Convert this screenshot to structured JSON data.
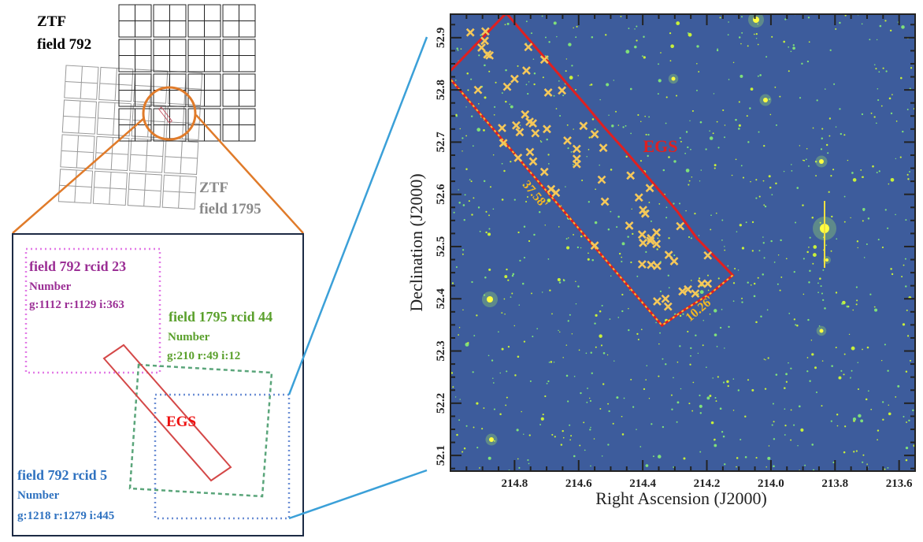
{
  "overview": {
    "field_792_label": [
      "ZTF",
      "field 792"
    ],
    "field_1795_label": [
      "ZTF",
      "field 1795"
    ]
  },
  "inset": {
    "boxes": [
      {
        "title": "field 792 rcid 23",
        "sub": "Number",
        "counts": "g:1112 r:1129 i:363",
        "color": "#9b2f95"
      },
      {
        "title": "field 1795 rcid 44",
        "sub": "Number",
        "counts": "g:210 r:49 i:12",
        "color": "#5aa02c"
      },
      {
        "title": "field 792 rcid 5",
        "sub": "Number",
        "counts": "g:1218 r:1279 i:445",
        "color": "#2f72c0"
      }
    ],
    "egs_label": "EGS"
  },
  "colors": {
    "egs": "#e02020",
    "cross": "#f5c85a",
    "sky": "#3d5c9c",
    "zoom_lines_orange": "#e07b2a",
    "zoom_lines_blue": "#3ba0d8"
  },
  "chart_data": {
    "type": "scatter",
    "xlabel": "Right Ascension (J2000)",
    "ylabel": "Declination (J2000)",
    "xlim": [
      215.0,
      213.55
    ],
    "ylim": [
      52.07,
      52.945
    ],
    "xticks": [
      "214.8",
      "214.6",
      "214.4",
      "214.2",
      "214.0",
      "213.8",
      "213.6"
    ],
    "yticks": [
      "52.1",
      "52.2",
      "52.3",
      "52.4",
      "52.5",
      "52.6",
      "52.7",
      "52.8",
      "52.9"
    ],
    "region_label": "EGS",
    "edge_labels": [
      "37.58'",
      "10.26'"
    ],
    "egs_polygon": [
      [
        214.826,
        52.947
      ],
      [
        214.638,
        52.813
      ],
      [
        214.578,
        52.771
      ],
      [
        214.521,
        52.729
      ],
      [
        214.464,
        52.69
      ],
      [
        214.293,
        52.568
      ],
      [
        214.231,
        52.516
      ],
      [
        214.119,
        52.445
      ],
      [
        214.189,
        52.41
      ],
      [
        214.272,
        52.378
      ],
      [
        214.34,
        52.349
      ],
      [
        215.012,
        52.829
      ]
    ],
    "points": [
      [
        214.938,
        52.91
      ],
      [
        214.891,
        52.912
      ],
      [
        214.893,
        52.894
      ],
      [
        214.903,
        52.881
      ],
      [
        214.885,
        52.868
      ],
      [
        214.878,
        52.866
      ],
      [
        214.757,
        52.882
      ],
      [
        214.707,
        52.858
      ],
      [
        214.763,
        52.837
      ],
      [
        214.8,
        52.821
      ],
      [
        214.823,
        52.806
      ],
      [
        214.914,
        52.8
      ],
      [
        214.695,
        52.795
      ],
      [
        214.652,
        52.799
      ],
      [
        214.767,
        52.753
      ],
      [
        214.753,
        52.739
      ],
      [
        214.743,
        52.736
      ],
      [
        214.735,
        52.717
      ],
      [
        214.795,
        52.732
      ],
      [
        214.784,
        52.719
      ],
      [
        214.839,
        52.727
      ],
      [
        214.699,
        52.725
      ],
      [
        214.585,
        52.731
      ],
      [
        214.55,
        52.715
      ],
      [
        214.523,
        52.689
      ],
      [
        214.635,
        52.703
      ],
      [
        214.606,
        52.687
      ],
      [
        214.606,
        52.668
      ],
      [
        214.606,
        52.658
      ],
      [
        214.835,
        52.698
      ],
      [
        214.789,
        52.67
      ],
      [
        214.752,
        52.681
      ],
      [
        214.742,
        52.663
      ],
      [
        214.707,
        52.643
      ],
      [
        214.686,
        52.61
      ],
      [
        214.671,
        52.603
      ],
      [
        214.528,
        52.628
      ],
      [
        214.518,
        52.586
      ],
      [
        214.438,
        52.636
      ],
      [
        214.378,
        52.612
      ],
      [
        214.412,
        52.594
      ],
      [
        214.399,
        52.57
      ],
      [
        214.392,
        52.563
      ],
      [
        214.357,
        52.527
      ],
      [
        214.442,
        52.54
      ],
      [
        214.402,
        52.523
      ],
      [
        214.399,
        52.507
      ],
      [
        214.376,
        52.511
      ],
      [
        214.357,
        52.505
      ],
      [
        214.374,
        52.516
      ],
      [
        214.283,
        52.539
      ],
      [
        214.55,
        52.502
      ],
      [
        214.319,
        52.484
      ],
      [
        214.302,
        52.472
      ],
      [
        214.197,
        52.483
      ],
      [
        214.402,
        52.466
      ],
      [
        214.374,
        52.465
      ],
      [
        214.355,
        52.463
      ],
      [
        214.276,
        52.414
      ],
      [
        214.259,
        52.418
      ],
      [
        214.236,
        52.41
      ],
      [
        214.216,
        52.429
      ],
      [
        214.197,
        52.429
      ],
      [
        214.355,
        52.395
      ],
      [
        214.329,
        52.4
      ],
      [
        214.321,
        52.385
      ]
    ]
  }
}
